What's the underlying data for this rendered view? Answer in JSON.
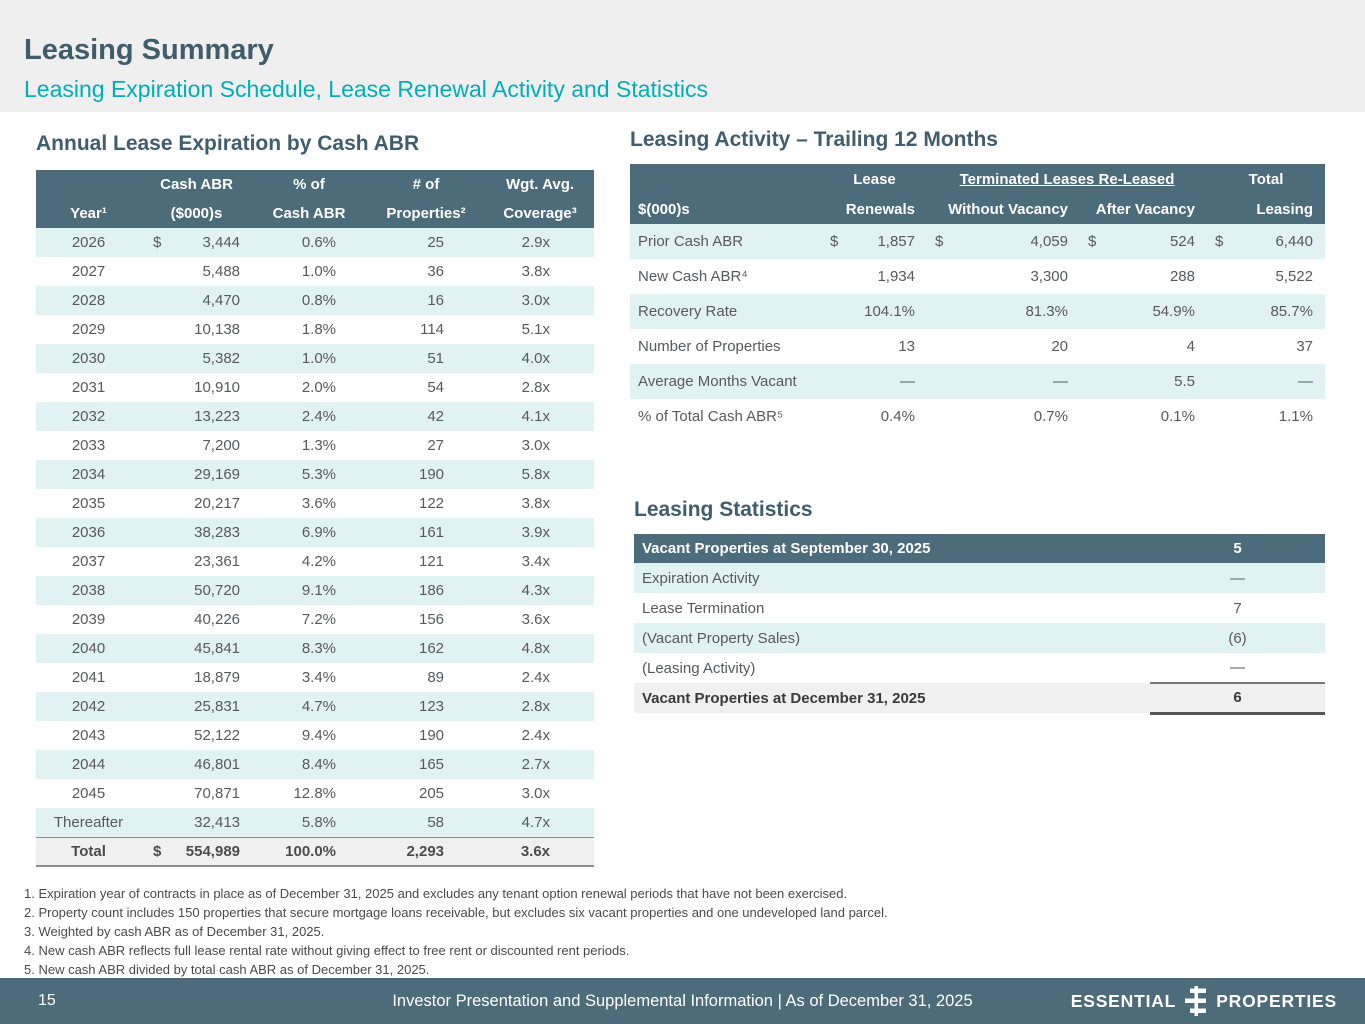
{
  "header": {
    "title": "Leasing Summary",
    "subtitle": "Leasing Expiration Schedule, Lease Renewal Activity and Statistics"
  },
  "expiration": {
    "title": "Annual Lease Expiration by Cash ABR",
    "headers": {
      "year": "Year¹",
      "abr_l1": "Cash ABR",
      "abr_l2": "($000)s",
      "pct_l1": "% of",
      "pct_l2": "Cash ABR",
      "props_l1": "# of",
      "props_l2": "Properties²",
      "cov_l1": "Wgt. Avg.",
      "cov_l2": "Coverage³"
    },
    "rows": [
      {
        "year": "2026",
        "dollar": "$",
        "abr": "3,444",
        "pct": "0.6%",
        "props": "25",
        "cov": "2.9x"
      },
      {
        "year": "2027",
        "dollar": "",
        "abr": "5,488",
        "pct": "1.0%",
        "props": "36",
        "cov": "3.8x"
      },
      {
        "year": "2028",
        "dollar": "",
        "abr": "4,470",
        "pct": "0.8%",
        "props": "16",
        "cov": "3.0x"
      },
      {
        "year": "2029",
        "dollar": "",
        "abr": "10,138",
        "pct": "1.8%",
        "props": "114",
        "cov": "5.1x"
      },
      {
        "year": "2030",
        "dollar": "",
        "abr": "5,382",
        "pct": "1.0%",
        "props": "51",
        "cov": "4.0x"
      },
      {
        "year": "2031",
        "dollar": "",
        "abr": "10,910",
        "pct": "2.0%",
        "props": "54",
        "cov": "2.8x"
      },
      {
        "year": "2032",
        "dollar": "",
        "abr": "13,223",
        "pct": "2.4%",
        "props": "42",
        "cov": "4.1x"
      },
      {
        "year": "2033",
        "dollar": "",
        "abr": "7,200",
        "pct": "1.3%",
        "props": "27",
        "cov": "3.0x"
      },
      {
        "year": "2034",
        "dollar": "",
        "abr": "29,169",
        "pct": "5.3%",
        "props": "190",
        "cov": "5.8x"
      },
      {
        "year": "2035",
        "dollar": "",
        "abr": "20,217",
        "pct": "3.6%",
        "props": "122",
        "cov": "3.8x"
      },
      {
        "year": "2036",
        "dollar": "",
        "abr": "38,283",
        "pct": "6.9%",
        "props": "161",
        "cov": "3.9x"
      },
      {
        "year": "2037",
        "dollar": "",
        "abr": "23,361",
        "pct": "4.2%",
        "props": "121",
        "cov": "3.4x"
      },
      {
        "year": "2038",
        "dollar": "",
        "abr": "50,720",
        "pct": "9.1%",
        "props": "186",
        "cov": "4.3x"
      },
      {
        "year": "2039",
        "dollar": "",
        "abr": "40,226",
        "pct": "7.2%",
        "props": "156",
        "cov": "3.6x"
      },
      {
        "year": "2040",
        "dollar": "",
        "abr": "45,841",
        "pct": "8.3%",
        "props": "162",
        "cov": "4.8x"
      },
      {
        "year": "2041",
        "dollar": "",
        "abr": "18,879",
        "pct": "3.4%",
        "props": "89",
        "cov": "2.4x"
      },
      {
        "year": "2042",
        "dollar": "",
        "abr": "25,831",
        "pct": "4.7%",
        "props": "123",
        "cov": "2.8x"
      },
      {
        "year": "2043",
        "dollar": "",
        "abr": "52,122",
        "pct": "9.4%",
        "props": "190",
        "cov": "2.4x"
      },
      {
        "year": "2044",
        "dollar": "",
        "abr": "46,801",
        "pct": "8.4%",
        "props": "165",
        "cov": "2.7x"
      },
      {
        "year": "2045",
        "dollar": "",
        "abr": "70,871",
        "pct": "12.8%",
        "props": "205",
        "cov": "3.0x"
      },
      {
        "year": "Thereafter",
        "dollar": "",
        "abr": "32,413",
        "pct": "5.8%",
        "props": "58",
        "cov": "4.7x"
      }
    ],
    "total": {
      "label": "Total",
      "dollar": "$",
      "abr": "554,989",
      "pct": "100.0%",
      "props": "2,293",
      "cov": "3.6x"
    }
  },
  "activity": {
    "title": "Leasing Activity – Trailing 12 Months",
    "headers": {
      "col0": "$(000)s",
      "lease_top": "Lease",
      "lease_bottom": "Renewals",
      "terminated_span": "Terminated Leases Re-Leased",
      "without": "Without Vacancy",
      "after": "After Vacancy",
      "total_top": "Total",
      "total_bottom": "Leasing"
    },
    "rows": [
      {
        "label": "Prior Cash ABR",
        "d1": "$",
        "v1": "1,857",
        "d2": "$",
        "v2": "4,059",
        "d3": "$",
        "v3": "524",
        "d4": "$",
        "v4": "6,440"
      },
      {
        "label": "New Cash ABR⁴",
        "d1": "",
        "v1": "1,934",
        "d2": "",
        "v2": "3,300",
        "d3": "",
        "v3": "288",
        "d4": "",
        "v4": "5,522"
      },
      {
        "label": "Recovery Rate",
        "d1": "",
        "v1": "104.1%",
        "d2": "",
        "v2": "81.3%",
        "d3": "",
        "v3": "54.9%",
        "d4": "",
        "v4": "85.7%"
      },
      {
        "label": "Number of Properties",
        "d1": "",
        "v1": "13",
        "d2": "",
        "v2": "20",
        "d3": "",
        "v3": "4",
        "d4": "",
        "v4": "37"
      },
      {
        "label": "Average Months Vacant",
        "d1": "",
        "v1": "—",
        "d2": "",
        "v2": "—",
        "d3": "",
        "v3": "5.5",
        "d4": "",
        "v4": "—"
      },
      {
        "label": "% of Total Cash ABR⁵",
        "d1": "",
        "v1": "0.4%",
        "d2": "",
        "v2": "0.7%",
        "d3": "",
        "v3": "0.1%",
        "d4": "",
        "v4": "1.1%"
      }
    ]
  },
  "statistics": {
    "title": "Leasing Statistics",
    "header": {
      "label": "Vacant Properties at September 30, 2025",
      "value": "5"
    },
    "rows": [
      {
        "label": "Expiration Activity",
        "value": "—"
      },
      {
        "label": "Lease Termination",
        "value": "7"
      },
      {
        "label": "(Vacant Property Sales)",
        "value": "(6)"
      },
      {
        "label": "(Leasing Activity)",
        "value": "—"
      }
    ],
    "footer": {
      "label": "Vacant Properties at December 31, 2025",
      "value": "6"
    }
  },
  "footnotes": [
    "1. Expiration year of contracts in place as of December 31, 2025 and excludes any tenant option renewal periods that have not been exercised.",
    "2. Property count includes 150 properties that secure mortgage loans receivable, but excludes six vacant properties and one undeveloped land parcel.",
    "3. Weighted by cash ABR as of December 31, 2025.",
    "4. New cash ABR reflects full lease rental rate without giving effect to free rent or discounted rent periods.",
    "5. New cash ABR divided by total cash ABR as of December 31, 2025."
  ],
  "footer": {
    "page_number": "15",
    "center_text": "Investor Presentation and Supplemental Information |  As of December 31, 2025",
    "logo_left": "ESSENTIAL",
    "logo_right": "PROPERTIES"
  },
  "colors": {
    "accent_teal": "#00AEBA",
    "slate_header": "#4C6B7B",
    "title_slate": "#3F5D6C",
    "row_stripe": "#E1F2F3",
    "total_row_bg": "#F0F0F0"
  }
}
